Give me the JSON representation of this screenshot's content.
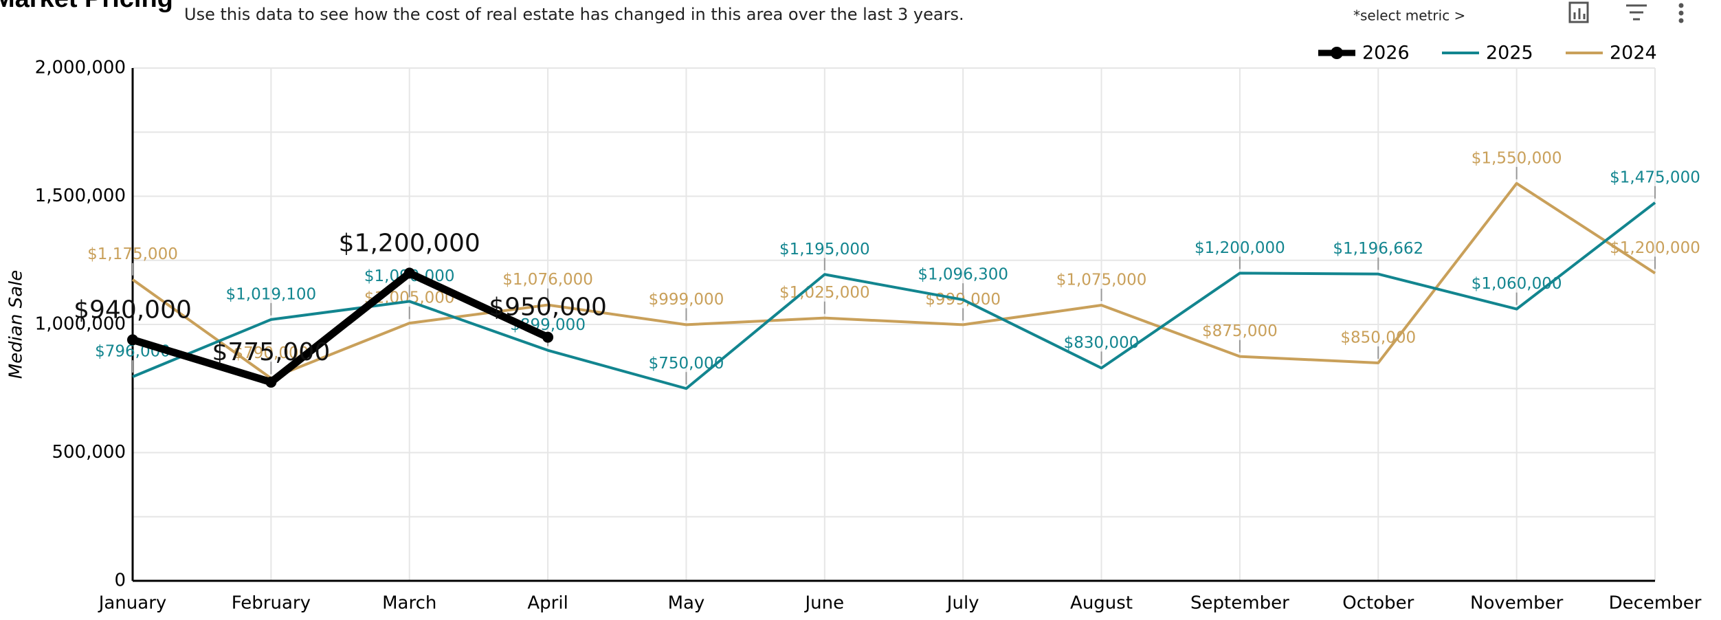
{
  "chart_data": {
    "type": "line",
    "title": "Market Pricing",
    "subtitle": "Use this data to see how the cost of real estate has changed in this area over the last 3 years.",
    "metric_selector": "*select metric >",
    "y_label": "Median Sale",
    "categories": [
      "January",
      "February",
      "March",
      "April",
      "May",
      "June",
      "July",
      "August",
      "September",
      "October",
      "November",
      "December"
    ],
    "ylim": [
      0,
      2000000
    ],
    "yticks": [
      {
        "value": 0,
        "label": "0"
      },
      {
        "value": 500000,
        "label": "500,000"
      },
      {
        "value": 1000000,
        "label": "1,000,000"
      },
      {
        "value": 1500000,
        "label": "1,500,000"
      },
      {
        "value": 2000000,
        "label": "2,000,000"
      }
    ],
    "grid": true,
    "legend": "top-right",
    "series": [
      {
        "name": "2026",
        "color": "#000000",
        "values": [
          940000,
          775000,
          1200000,
          950000,
          null,
          null,
          null,
          null,
          null,
          null,
          null,
          null
        ],
        "value_labels": [
          "$940,000",
          "$775,000",
          "$1,200,000",
          "$950,000",
          null,
          null,
          null,
          null,
          null,
          null,
          null,
          null
        ]
      },
      {
        "name": "2025",
        "color": "#12858f",
        "values": [
          796000,
          1019100,
          1090000,
          899000,
          750000,
          1195000,
          1096300,
          830000,
          1200000,
          1196662,
          1060000,
          1475000
        ],
        "value_labels": [
          "$796,000",
          "$1,019,100",
          "$1,090,000",
          "$899,000",
          "$750,000",
          "$1,195,000",
          "$1,096,300",
          "$830,000",
          "$1,200,000",
          "$1,196,662",
          "$1,060,000",
          "$1,475,000"
        ]
      },
      {
        "name": "2024",
        "color": "#c9a05a",
        "values": [
          1175000,
          790000,
          1005000,
          1076000,
          999000,
          1025000,
          999000,
          1075000,
          875000,
          850000,
          1550000,
          1200000
        ],
        "value_labels": [
          "$1,175,000",
          "$790,000",
          "$1,005,000",
          "$1,076,000",
          "$999,000",
          "$1,025,000",
          "$999,000",
          "$1,075,000",
          "$875,000",
          "$850,000",
          "$1,550,000",
          "$1,200,000"
        ]
      }
    ]
  }
}
